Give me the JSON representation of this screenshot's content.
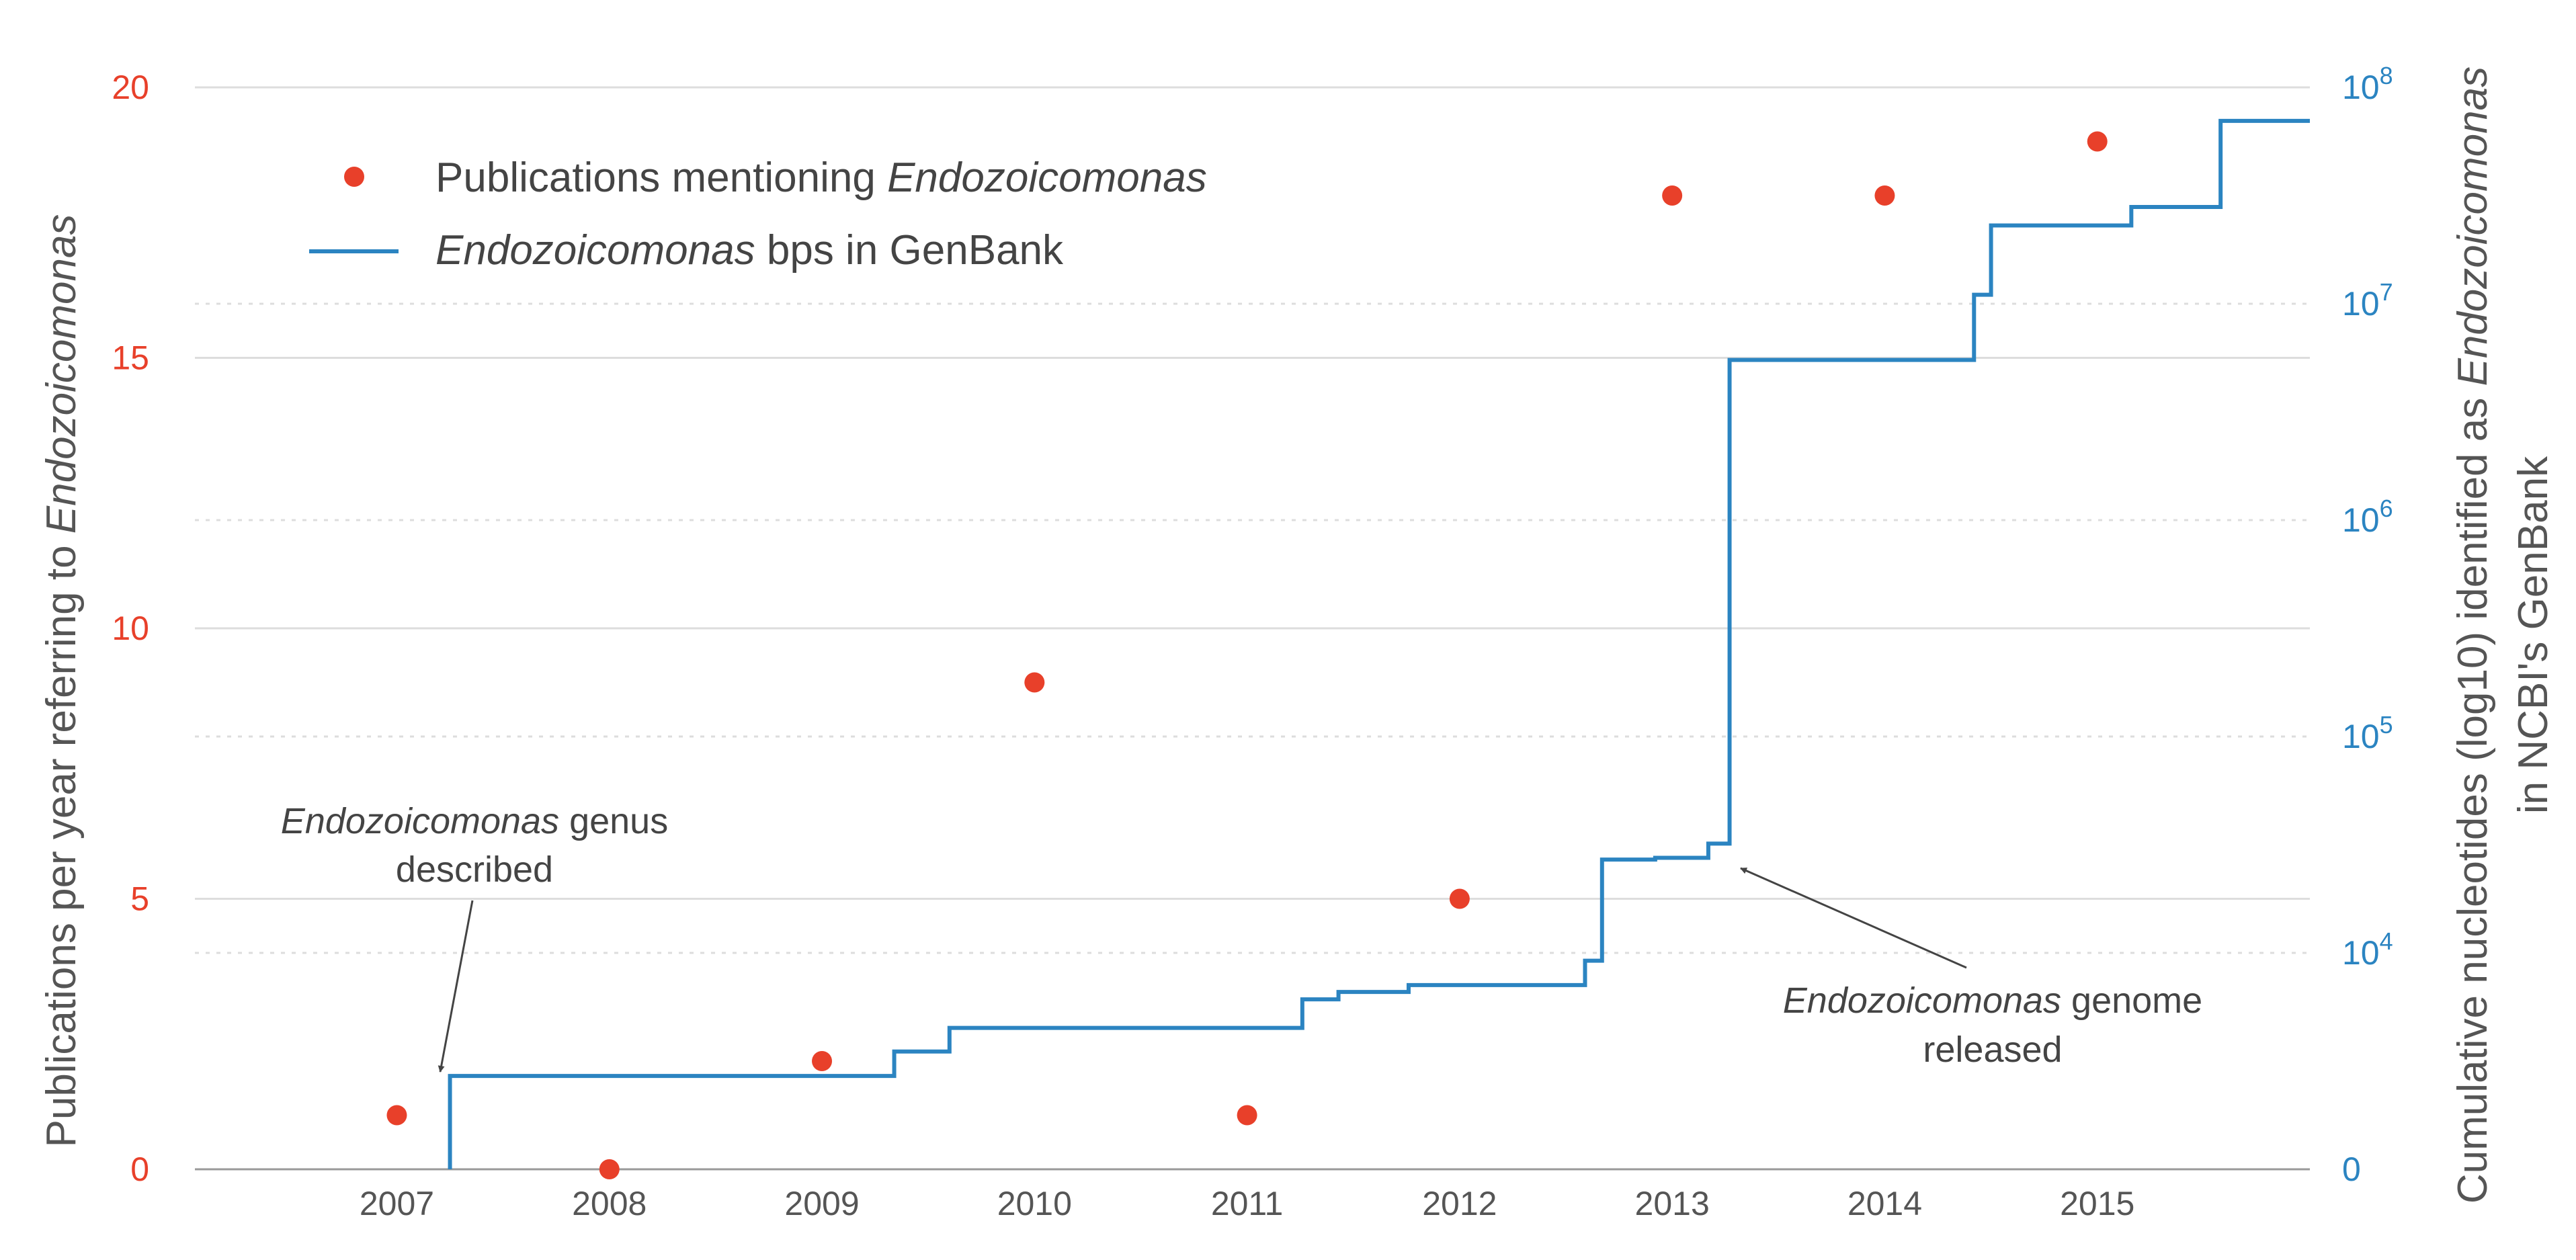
{
  "chart_data": {
    "type": "line",
    "x_ticks": [
      "2007",
      "2008",
      "2009",
      "2010",
      "2011",
      "2012",
      "2013",
      "2014",
      "2015"
    ],
    "xlim": [
      2006.05,
      2016.0
    ],
    "left_axis": {
      "label_plain": "Publications per year referring to ",
      "label_italic": "Endozoicomonas",
      "ticks": [
        "0",
        "5",
        "10",
        "15",
        "20"
      ],
      "ylim": [
        0,
        20
      ],
      "color": "#e8402a"
    },
    "right_axis": {
      "label_line1_plain": "Cumulative nucleotides (log10) identified as ",
      "label_line1_italic": "Endozoicomonas",
      "label_line2": "in NCBI's GenBank",
      "scale": "log10",
      "ylim": [
        1000,
        100000000
      ],
      "ticks": [
        {
          "value": 1000,
          "text": "0",
          "sup": ""
        },
        {
          "value": 10000,
          "text": "10",
          "sup": "4"
        },
        {
          "value": 100000,
          "text": "10",
          "sup": "5"
        },
        {
          "value": 1000000,
          "text": "10",
          "sup": "6"
        },
        {
          "value": 10000000,
          "text": "10",
          "sup": "7"
        },
        {
          "value": 100000000,
          "text": "10",
          "sup": "8"
        }
      ],
      "color": "#2b84c1"
    },
    "series": [
      {
        "name_plain": "Publications mentioning ",
        "name_italic": "Endozoicomonas",
        "type": "scatter",
        "axis": "left",
        "color": "#e8402a",
        "x": [
          2007,
          2008,
          2009,
          2010,
          2011,
          2012,
          2013,
          2014,
          2015
        ],
        "y": [
          1,
          0,
          2,
          9,
          1,
          5,
          18,
          18,
          19
        ]
      },
      {
        "name_italic": "Endozoicomonas",
        "name_plain": " bps in GenBank",
        "type": "step",
        "axis": "right",
        "color": "#2b84c1",
        "x": [
          2007.25,
          2007.25,
          2009.34,
          2009.6,
          2011.26,
          2011.43,
          2011.76,
          2012.59,
          2012.67,
          2012.92,
          2013.17,
          2013.27,
          2014.42,
          2014.5,
          2015.16,
          2015.58,
          2016.0
        ],
        "y": [
          1000,
          2700,
          3500,
          4500,
          6100,
          6600,
          7100,
          9200,
          27000,
          27500,
          32000,
          5500000,
          11000000,
          23000000,
          28000000,
          70000000,
          70000000
        ]
      }
    ],
    "annotations": [
      {
        "italic": "Endozoicomonas",
        "plain": " genus",
        "line2": "described"
      },
      {
        "italic": "Endozoicomonas",
        "plain": " genome",
        "line2": "released"
      }
    ],
    "grid": true,
    "legend_position": "top-left"
  }
}
